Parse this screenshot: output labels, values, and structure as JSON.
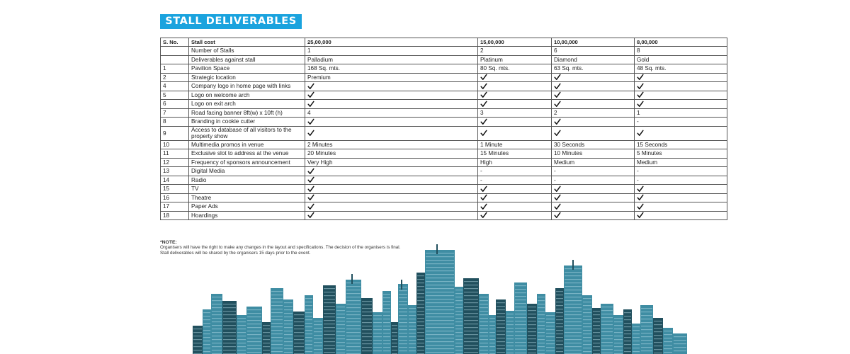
{
  "title": "STALL DELIVERABLES",
  "table": {
    "headers": [
      "S. No.",
      "Stall cost",
      "25,00,000",
      "15,00,000",
      "10,00,000",
      "8,00,000"
    ],
    "rows": [
      {
        "sno": "",
        "item": "Number of Stalls",
        "vals": [
          "1",
          "2",
          "6",
          "8"
        ]
      },
      {
        "sno": "",
        "item": "Deliverables against stall",
        "vals": [
          "Palladium",
          "Platinum",
          "Diamond",
          "Gold"
        ]
      },
      {
        "sno": "1",
        "item": "Pavilion Space",
        "vals": [
          "168 Sq. mts.",
          "80 Sq. mts.",
          "63 Sq. mts.",
          "48 Sq. mts."
        ]
      },
      {
        "sno": "2",
        "item": "Strategic location",
        "vals": [
          "Premium",
          "✓",
          "✓",
          "✓"
        ]
      },
      {
        "sno": "4",
        "item": "Company logo in home page with links",
        "vals": [
          "✓",
          "✓",
          "✓",
          "✓"
        ]
      },
      {
        "sno": "5",
        "item": "Logo on welcome arch",
        "vals": [
          "✓",
          "✓",
          "✓",
          "✓"
        ]
      },
      {
        "sno": "6",
        "item": "Logo on exit arch",
        "vals": [
          "✓",
          "✓",
          "✓",
          "✓"
        ]
      },
      {
        "sno": "7",
        "item": "Road facing banner 8ft(w) x 10ft (h)",
        "vals": [
          "4",
          "3",
          "2",
          "1"
        ]
      },
      {
        "sno": "8",
        "item": "Branding in cookie cutter",
        "vals": [
          "✓",
          "✓",
          "✓",
          "-"
        ]
      },
      {
        "sno": "9",
        "item": "Access to database of all visitors to the property show",
        "vals": [
          "✓",
          "✓",
          "✓",
          "✓"
        ]
      },
      {
        "sno": "10",
        "item": "Multimedia promos in venue",
        "vals": [
          "2 Minutes",
          "1 Minute",
          "30 Seconds",
          "15 Seconds"
        ]
      },
      {
        "sno": "11",
        "item": "Exclusive slot to address at the venue",
        "vals": [
          "20 Minutes",
          "15 Minutes",
          "10 Minutes",
          "5 Minutes"
        ]
      },
      {
        "sno": "12",
        "item": "Frequency of sponsors announcement",
        "vals": [
          "Very High",
          "High",
          "Medium",
          "Medium"
        ]
      },
      {
        "sno": "13",
        "item": "Digital Media",
        "vals": [
          "✓",
          "-",
          "-",
          "-"
        ]
      },
      {
        "sno": "14",
        "item": "Radio",
        "vals": [
          "✓",
          "-",
          "-",
          "-"
        ]
      },
      {
        "sno": "15",
        "item": "TV",
        "vals": [
          "✓",
          "✓",
          "✓",
          "✓"
        ]
      },
      {
        "sno": "16",
        "item": "Theatre",
        "vals": [
          "✓",
          "✓",
          "✓",
          "✓"
        ]
      },
      {
        "sno": "17",
        "item": "Paper Ads",
        "vals": [
          "✓",
          "✓",
          "✓",
          "✓"
        ]
      },
      {
        "sno": "18",
        "item": "Hoardings",
        "vals": [
          "✓",
          "✓",
          "✓",
          "✓"
        ]
      }
    ]
  },
  "note": {
    "title": "*NOTE:",
    "lines": [
      "Organisers will have the right to make any changes in the layout and specifications. The decision of the organisers is final.",
      "Stall deliverables will be shared by the organisers 15 days prior to the event."
    ]
  },
  "colors": {
    "banner": "#1aa3de",
    "skyline": "#3f8da3",
    "skyline_dark": "#21505e"
  },
  "icons": {
    "tick": "check-mark-icon",
    "skyline": "city-skyline-image"
  }
}
